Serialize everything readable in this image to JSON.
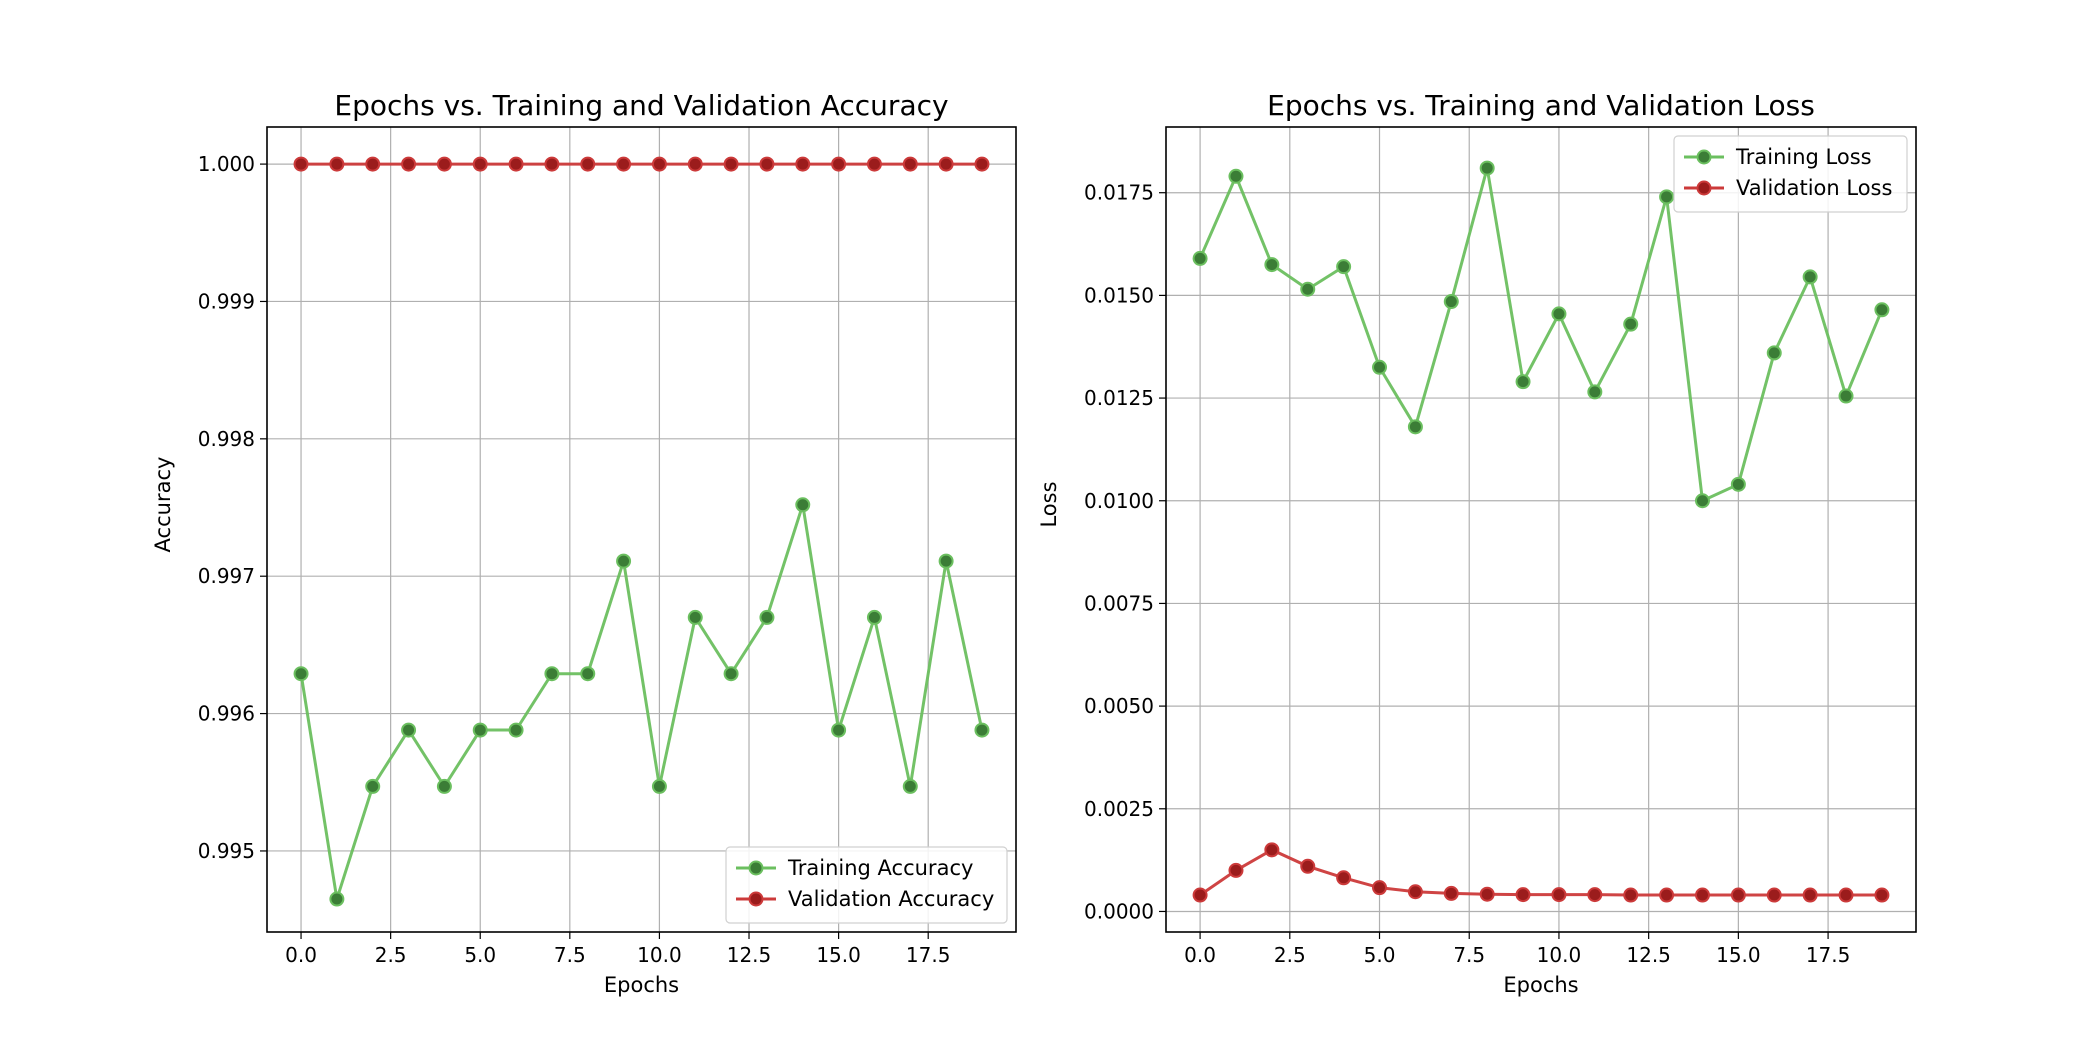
{
  "chart_data": [
    {
      "type": "line",
      "title": "Epochs vs. Training and Validation Accuracy",
      "xlabel": "Epochs",
      "ylabel": "Accuracy",
      "x": [
        0,
        1,
        2,
        3,
        4,
        5,
        6,
        7,
        8,
        9,
        10,
        11,
        12,
        13,
        14,
        15,
        16,
        17,
        18,
        19
      ],
      "xlim": [
        -0.95,
        19.95
      ],
      "ylim": [
        0.99441,
        1.00027
      ],
      "xticks": [
        0.0,
        2.5,
        5.0,
        7.5,
        10.0,
        12.5,
        15.0,
        17.5
      ],
      "xtick_labels": [
        "0.0",
        "2.5",
        "5.0",
        "7.5",
        "10.0",
        "12.5",
        "15.0",
        "17.5"
      ],
      "yticks": [
        0.995,
        0.996,
        0.997,
        0.998,
        0.999,
        1.0
      ],
      "ytick_labels": [
        "0.995",
        "0.996",
        "0.997",
        "0.998",
        "0.999",
        "1.000"
      ],
      "grid": true,
      "legend_position": "lower-right",
      "series": [
        {
          "name": "Training Accuracy",
          "color": "#6bbf5f",
          "marker_color": "#3b7d36",
          "values": [
            0.99629,
            0.99465,
            0.99547,
            0.99588,
            0.99547,
            0.99588,
            0.99588,
            0.99629,
            0.99629,
            0.99711,
            0.99547,
            0.9967,
            0.99629,
            0.9967,
            0.99752,
            0.99588,
            0.9967,
            0.99547,
            0.99711,
            0.99588
          ]
        },
        {
          "name": "Validation Accuracy",
          "color": "#cc3a3a",
          "marker_color": "#9b1c1c",
          "values": [
            1.0,
            1.0,
            1.0,
            1.0,
            1.0,
            1.0,
            1.0,
            1.0,
            1.0,
            1.0,
            1.0,
            1.0,
            1.0,
            1.0,
            1.0,
            1.0,
            1.0,
            1.0,
            1.0,
            1.0
          ]
        }
      ]
    },
    {
      "type": "line",
      "title": "Epochs vs. Training and Validation Loss",
      "xlabel": "Epochs",
      "ylabel": "Loss",
      "x": [
        0,
        1,
        2,
        3,
        4,
        5,
        6,
        7,
        8,
        9,
        10,
        11,
        12,
        13,
        14,
        15,
        16,
        17,
        18,
        19
      ],
      "xlim": [
        -0.95,
        19.95
      ],
      "ylim": [
        -0.0005,
        0.0191
      ],
      "xticks": [
        0.0,
        2.5,
        5.0,
        7.5,
        10.0,
        12.5,
        15.0,
        17.5
      ],
      "xtick_labels": [
        "0.0",
        "2.5",
        "5.0",
        "7.5",
        "10.0",
        "12.5",
        "15.0",
        "17.5"
      ],
      "yticks": [
        0.0,
        0.0025,
        0.005,
        0.0075,
        0.01,
        0.0125,
        0.015,
        0.0175
      ],
      "ytick_labels": [
        "0.0000",
        "0.0025",
        "0.0050",
        "0.0075",
        "0.0100",
        "0.0125",
        "0.0150",
        "0.0175"
      ],
      "grid": true,
      "legend_position": "top-right",
      "series": [
        {
          "name": "Training Loss",
          "color": "#6bbf5f",
          "marker_color": "#3b7d36",
          "values": [
            0.0159,
            0.0179,
            0.01575,
            0.01515,
            0.0157,
            0.01325,
            0.0118,
            0.01485,
            0.0181,
            0.0129,
            0.01455,
            0.01265,
            0.0143,
            0.0174,
            0.01,
            0.0104,
            0.0136,
            0.01545,
            0.01255,
            0.01465
          ]
        },
        {
          "name": "Validation Loss",
          "color": "#cc3a3a",
          "marker_color": "#9b1c1c",
          "values": [
            0.0004,
            0.001,
            0.0015,
            0.0011,
            0.00082,
            0.00058,
            0.00048,
            0.00044,
            0.00042,
            0.00041,
            0.00041,
            0.00041,
            0.0004,
            0.0004,
            0.0004,
            0.0004,
            0.0004,
            0.0004,
            0.0004,
            0.0004
          ]
        }
      ]
    }
  ]
}
